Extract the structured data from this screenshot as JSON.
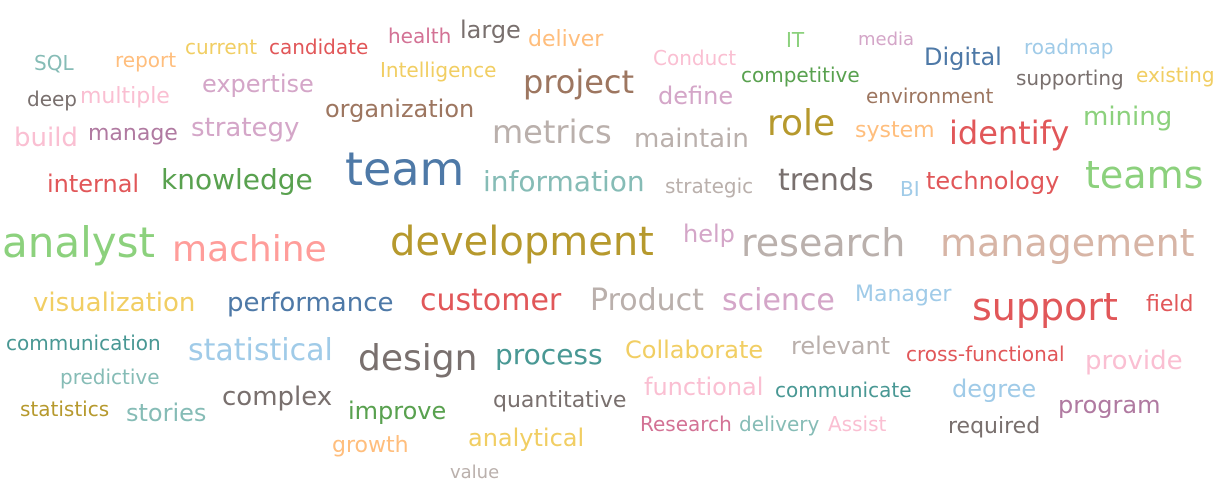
{
  "chart_data": {
    "type": "wordcloud",
    "words": [
      {
        "text": "team",
        "color": "#4e79a7",
        "weight": 46
      },
      {
        "text": "development",
        "color": "#b6992d",
        "weight": 40
      },
      {
        "text": "analyst",
        "color": "#8cd17d",
        "weight": 42
      },
      {
        "text": "research",
        "color": "#bab0ac",
        "weight": 38
      },
      {
        "text": "management",
        "color": "#d7b5a6",
        "weight": 38
      },
      {
        "text": "support",
        "color": "#e15759",
        "weight": 38
      },
      {
        "text": "teams",
        "color": "#8cd17d",
        "weight": 38
      },
      {
        "text": "machine",
        "color": "#ff9d9a",
        "weight": 36
      },
      {
        "text": "role",
        "color": "#b6992d",
        "weight": 36
      },
      {
        "text": "design",
        "color": "#79706e",
        "weight": 36
      },
      {
        "text": "metrics",
        "color": "#bab0ac",
        "weight": 32
      },
      {
        "text": "project",
        "color": "#9d7660",
        "weight": 32
      },
      {
        "text": "identify",
        "color": "#e15759",
        "weight": 32
      },
      {
        "text": "customer",
        "color": "#e15759",
        "weight": 30
      },
      {
        "text": "Product",
        "color": "#bab0ac",
        "weight": 30
      },
      {
        "text": "science",
        "color": "#d4a6c8",
        "weight": 30
      },
      {
        "text": "trends",
        "color": "#79706e",
        "weight": 30
      },
      {
        "text": "statistical",
        "color": "#a0cbe8",
        "weight": 30
      },
      {
        "text": "knowledge",
        "color": "#59a14f",
        "weight": 28
      },
      {
        "text": "process",
        "color": "#499894",
        "weight": 28
      },
      {
        "text": "information",
        "color": "#86bcb6",
        "weight": 28
      },
      {
        "text": "visualization",
        "color": "#f1ce63",
        "weight": 26
      },
      {
        "text": "performance",
        "color": "#4e79a7",
        "weight": 26
      },
      {
        "text": "complex",
        "color": "#79706e",
        "weight": 26
      },
      {
        "text": "strategy",
        "color": "#d4a6c8",
        "weight": 26
      },
      {
        "text": "maintain",
        "color": "#bab0ac",
        "weight": 26
      },
      {
        "text": "provide",
        "color": "#fabfd2",
        "weight": 26
      },
      {
        "text": "mining",
        "color": "#8cd17d",
        "weight": 26
      },
      {
        "text": "build",
        "color": "#fabfd2",
        "weight": 26
      },
      {
        "text": "Digital",
        "color": "#4e79a7",
        "weight": 24
      },
      {
        "text": "technology",
        "color": "#e15759",
        "weight": 24
      },
      {
        "text": "internal",
        "color": "#e15759",
        "weight": 24
      },
      {
        "text": "analytical",
        "color": "#f1ce63",
        "weight": 24
      },
      {
        "text": "degree",
        "color": "#a0cbe8",
        "weight": 24
      },
      {
        "text": "program",
        "color": "#b07aa1",
        "weight": 24
      },
      {
        "text": "Collaborate",
        "color": "#f1ce63",
        "weight": 24
      },
      {
        "text": "relevant",
        "color": "#bab0ac",
        "weight": 24
      },
      {
        "text": "functional",
        "color": "#fabfd2",
        "weight": 24
      },
      {
        "text": "organization",
        "color": "#9d7660",
        "weight": 24
      },
      {
        "text": "expertise",
        "color": "#d4a6c8",
        "weight": 24
      },
      {
        "text": "define",
        "color": "#d4a6c8",
        "weight": 24
      },
      {
        "text": "stories",
        "color": "#86bcb6",
        "weight": 24
      },
      {
        "text": "improve",
        "color": "#59a14f",
        "weight": 24
      },
      {
        "text": "quantitative",
        "color": "#79706e",
        "weight": 22
      },
      {
        "text": "help",
        "color": "#d4a6c8",
        "weight": 24
      },
      {
        "text": "large",
        "color": "#79706e",
        "weight": 24
      },
      {
        "text": "field",
        "color": "#e15759",
        "weight": 22
      },
      {
        "text": "Manager",
        "color": "#a0cbe8",
        "weight": 22
      },
      {
        "text": "system",
        "color": "#ffbe7d",
        "weight": 22
      },
      {
        "text": "deliver",
        "color": "#ffbe7d",
        "weight": 22
      },
      {
        "text": "manage",
        "color": "#b07aa1",
        "weight": 22
      },
      {
        "text": "multiple",
        "color": "#fabfd2",
        "weight": 22
      },
      {
        "text": "existing",
        "color": "#f1ce63",
        "weight": 20
      },
      {
        "text": "required",
        "color": "#79706e",
        "weight": 22
      },
      {
        "text": "growth",
        "color": "#ffbe7d",
        "weight": 22
      },
      {
        "text": "cross-functional",
        "color": "#e15759",
        "weight": 20
      },
      {
        "text": "communication",
        "color": "#499894",
        "weight": 20
      },
      {
        "text": "predictive",
        "color": "#86bcb6",
        "weight": 20
      },
      {
        "text": "statistics",
        "color": "#b6992d",
        "weight": 20
      },
      {
        "text": "communicate",
        "color": "#499894",
        "weight": 20
      },
      {
        "text": "strategic",
        "color": "#bab0ac",
        "weight": 20
      },
      {
        "text": "environment",
        "color": "#9d7660",
        "weight": 20
      },
      {
        "text": "supporting",
        "color": "#79706e",
        "weight": 20
      },
      {
        "text": "competitive",
        "color": "#59a14f",
        "weight": 20
      },
      {
        "text": "Intelligence",
        "color": "#f1ce63",
        "weight": 20
      },
      {
        "text": "candidate",
        "color": "#e15759",
        "weight": 20
      },
      {
        "text": "Research",
        "color": "#d37295",
        "weight": 20
      },
      {
        "text": "delivery",
        "color": "#86bcb6",
        "weight": 20
      },
      {
        "text": "Assist",
        "color": "#fabfd2",
        "weight": 20
      },
      {
        "text": "roadmap",
        "color": "#a0cbe8",
        "weight": 20
      },
      {
        "text": "SQL",
        "color": "#86bcb6",
        "weight": 20
      },
      {
        "text": "report",
        "color": "#ffbe7d",
        "weight": 20
      },
      {
        "text": "current",
        "color": "#f1ce63",
        "weight": 20
      },
      {
        "text": "health",
        "color": "#d37295",
        "weight": 20
      },
      {
        "text": "Conduct",
        "color": "#fabfd2",
        "weight": 20
      },
      {
        "text": "IT",
        "color": "#8cd17d",
        "weight": 20
      },
      {
        "text": "media",
        "color": "#d4a6c8",
        "weight": 18
      },
      {
        "text": "deep",
        "color": "#79706e",
        "weight": 20
      },
      {
        "text": "BI",
        "color": "#a0cbe8",
        "weight": 20
      },
      {
        "text": "value",
        "color": "#bab0ac",
        "weight": 18
      }
    ]
  }
}
